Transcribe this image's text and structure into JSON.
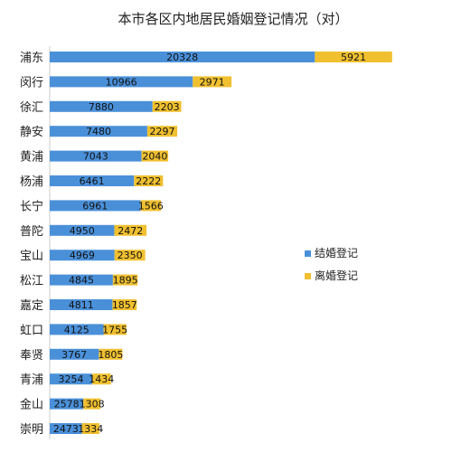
{
  "chart_data": {
    "type": "bar",
    "orientation": "horizontal",
    "stacked": true,
    "title": "本市各区内地居民婚姻登记情况（对）",
    "categories": [
      "浦东",
      "闵行",
      "徐汇",
      "静安",
      "黄浦",
      "杨浦",
      "长宁",
      "普陀",
      "宝山",
      "松江",
      "嘉定",
      "虹口",
      "奉贤",
      "青浦",
      "金山",
      "崇明"
    ],
    "series": [
      {
        "name": "结婚登记",
        "color": "#4a90d9",
        "values": [
          20328,
          10966,
          7880,
          7480,
          7043,
          6461,
          6961,
          4950,
          4969,
          4845,
          4811,
          4125,
          3767,
          3254,
          2578,
          2473
        ]
      },
      {
        "name": "离婚登记",
        "color": "#f0c030",
        "values": [
          5921,
          2971,
          2203,
          2297,
          2040,
          2222,
          1566,
          2472,
          2350,
          1895,
          1857,
          1755,
          1805,
          1434,
          1308,
          1334
        ]
      }
    ],
    "xlim": [
      0,
      30000
    ],
    "grid": false,
    "legend_position": "right"
  }
}
